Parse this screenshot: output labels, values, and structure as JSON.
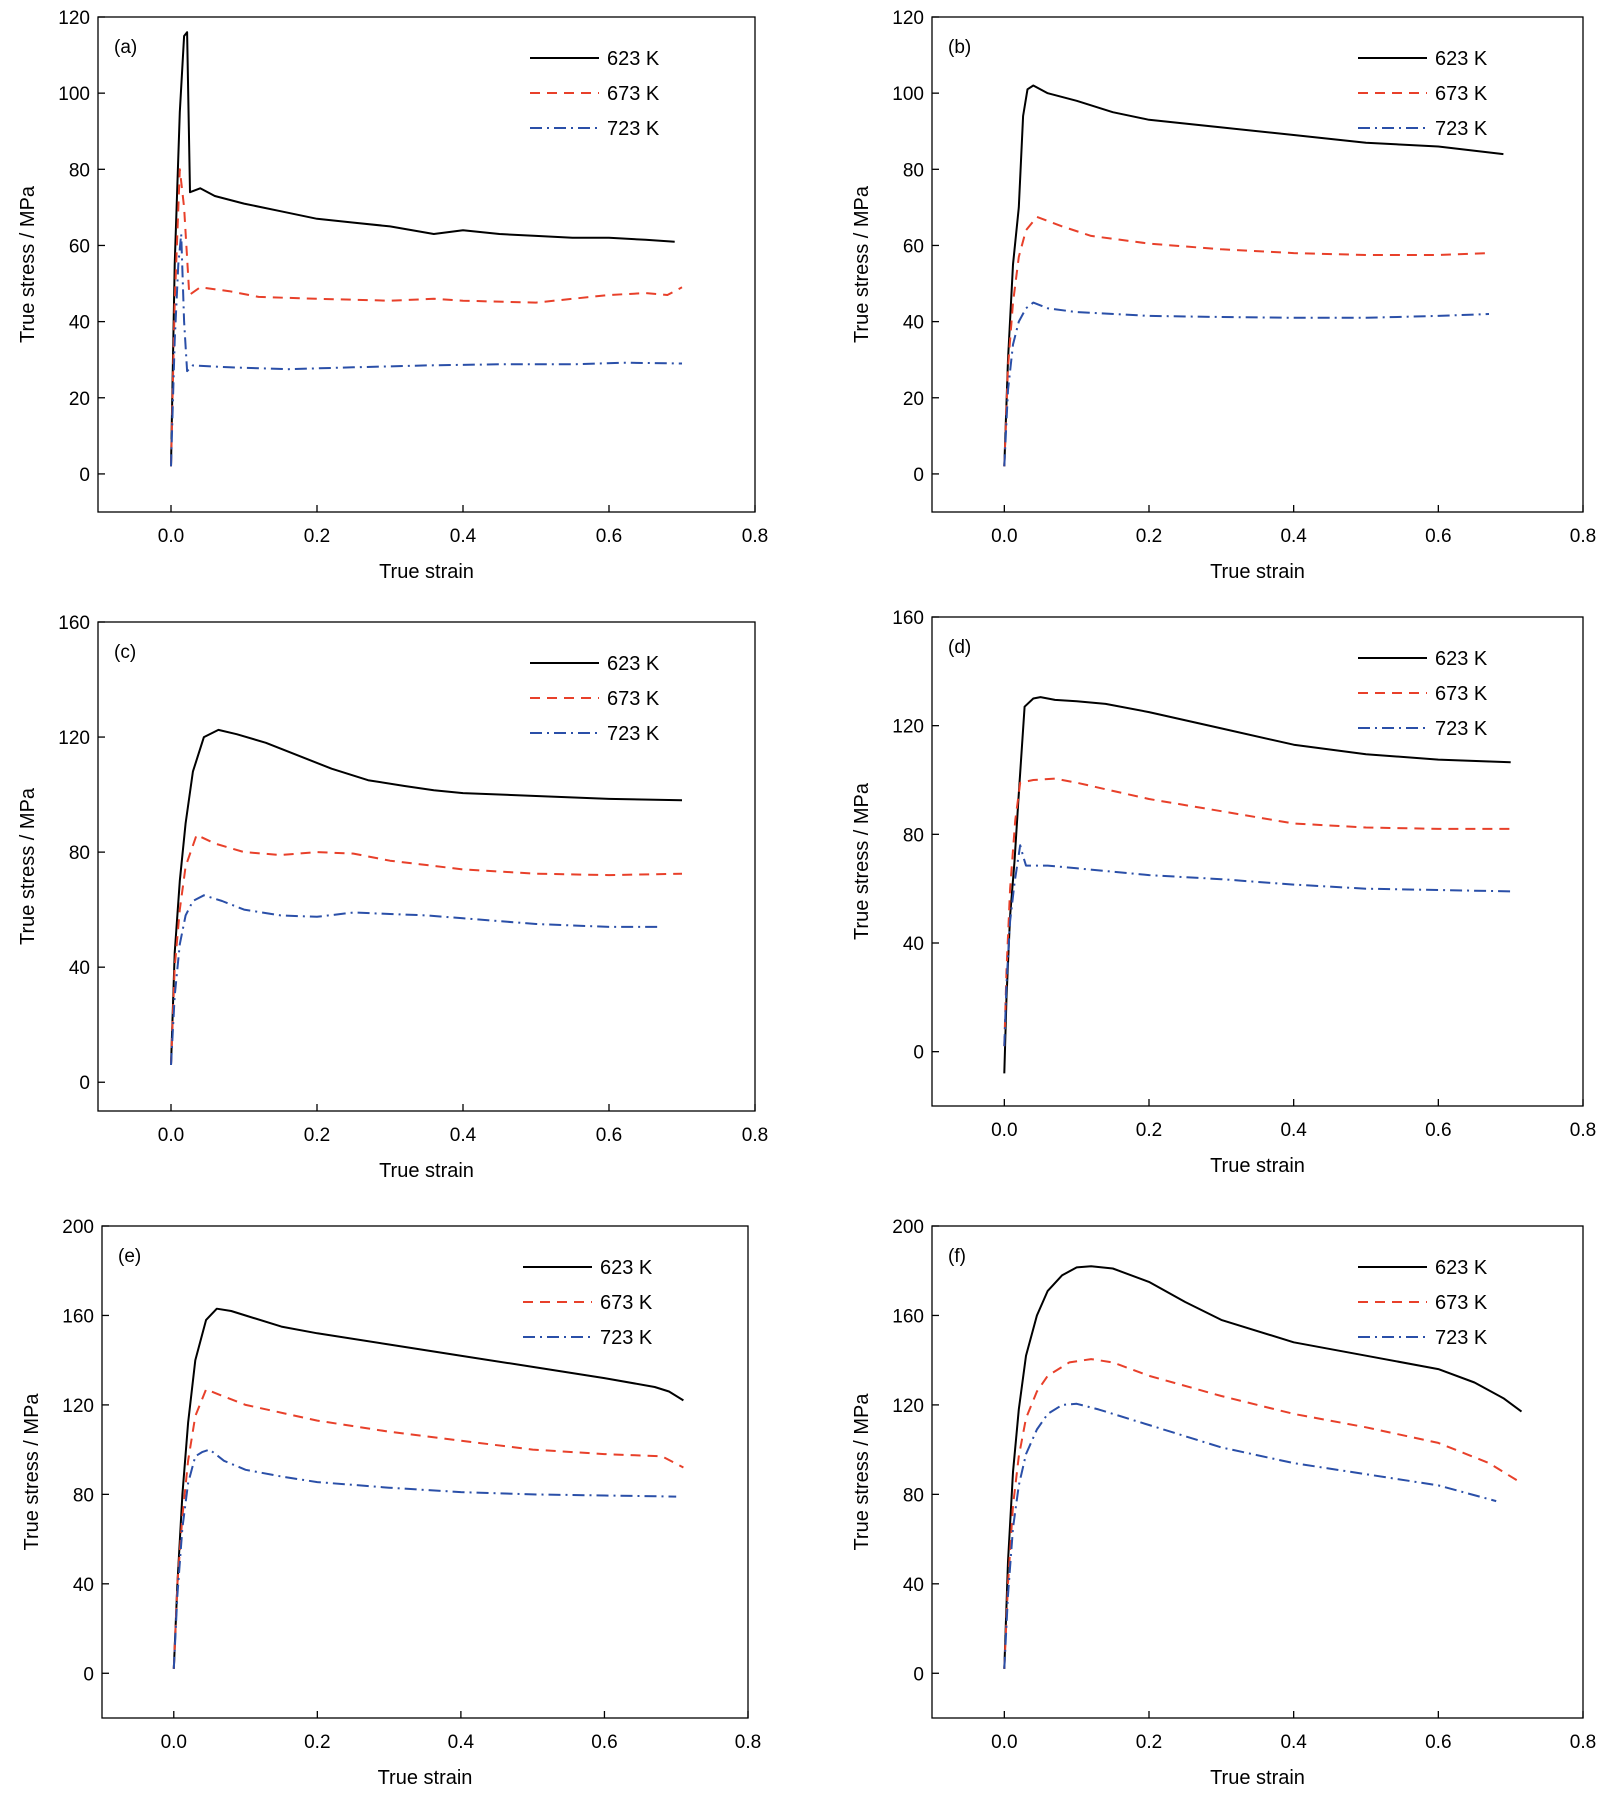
{
  "colors": {
    "623K": "#000000",
    "673K": "#e8402a",
    "723K": "#2a4fa8"
  },
  "styles": {
    "623K": "solid",
    "673K": "dashed",
    "723K": "dashdot"
  },
  "chart_data": [
    {
      "type": "line",
      "panel": "(a)",
      "xlabel": "True strain",
      "ylabel": "True stress / MPa",
      "xlim": [
        -0.1,
        0.8
      ],
      "ylim": [
        -10,
        120
      ],
      "xticks": [
        0.0,
        0.2,
        0.4,
        0.6,
        0.8
      ],
      "xtick_labels": [
        "0.0",
        "0.2",
        "0.4",
        "0.6",
        "0.8"
      ],
      "yticks": [
        0,
        20,
        40,
        60,
        80,
        100,
        120
      ],
      "ytick_labels": [
        "0",
        "20",
        "40",
        "60",
        "80",
        "100",
        "120"
      ],
      "legend": "top-right",
      "grid": false,
      "series": [
        {
          "name": "623 K",
          "key": "623K",
          "x": [
            0,
            0.005,
            0.012,
            0.018,
            0.022,
            0.026,
            0.04,
            0.06,
            0.1,
            0.15,
            0.2,
            0.25,
            0.3,
            0.36,
            0.4,
            0.45,
            0.5,
            0.55,
            0.6,
            0.65,
            0.69
          ],
          "y": [
            2,
            55,
            95,
            115,
            116,
            74,
            75,
            73,
            71,
            69,
            67,
            66,
            65,
            63,
            64,
            63,
            62.5,
            62,
            62,
            61.5,
            61
          ]
        },
        {
          "name": "673 K",
          "key": "673K",
          "x": [
            0,
            0.005,
            0.012,
            0.018,
            0.025,
            0.04,
            0.08,
            0.12,
            0.2,
            0.3,
            0.36,
            0.4,
            0.5,
            0.55,
            0.6,
            0.65,
            0.68,
            0.7
          ],
          "y": [
            2,
            45,
            80,
            70,
            47,
            49,
            48,
            46.5,
            46,
            45.5,
            46,
            45.5,
            45,
            46,
            47,
            47.5,
            47,
            49
          ]
        },
        {
          "name": "723 K",
          "key": "723K",
          "x": [
            0,
            0.005,
            0.01,
            0.014,
            0.018,
            0.022,
            0.03,
            0.08,
            0.16,
            0.25,
            0.35,
            0.45,
            0.55,
            0.62,
            0.7
          ],
          "y": [
            2,
            35,
            55,
            63,
            40,
            27,
            28.5,
            28,
            27.5,
            28,
            28.5,
            28.8,
            28.8,
            29.2,
            29
          ]
        }
      ]
    },
    {
      "type": "line",
      "panel": "(b)",
      "xlabel": "True strain",
      "ylabel": "True stress / MPa",
      "xlim": [
        -0.1,
        0.8
      ],
      "ylim": [
        -10,
        120
      ],
      "xticks": [
        0.0,
        0.2,
        0.4,
        0.6,
        0.8
      ],
      "xtick_labels": [
        "0.0",
        "0.2",
        "0.4",
        "0.6",
        "0.8"
      ],
      "yticks": [
        0,
        20,
        40,
        60,
        80,
        100,
        120
      ],
      "ytick_labels": [
        "0",
        "20",
        "40",
        "60",
        "80",
        "100",
        "120"
      ],
      "legend": "top-right",
      "grid": false,
      "series": [
        {
          "name": "623 K",
          "key": "623K",
          "x": [
            0,
            0.005,
            0.012,
            0.02,
            0.026,
            0.032,
            0.04,
            0.06,
            0.1,
            0.15,
            0.2,
            0.3,
            0.4,
            0.5,
            0.6,
            0.69
          ],
          "y": [
            2,
            30,
            55,
            70,
            94,
            101,
            102,
            100,
            98,
            95,
            93,
            91,
            89,
            87,
            86,
            84
          ]
        },
        {
          "name": "673 K",
          "key": "673K",
          "x": [
            0,
            0.005,
            0.012,
            0.02,
            0.03,
            0.045,
            0.08,
            0.12,
            0.2,
            0.3,
            0.4,
            0.5,
            0.6,
            0.67
          ],
          "y": [
            2,
            28,
            45,
            57,
            64,
            67.5,
            65,
            62.5,
            60.5,
            59,
            58,
            57.5,
            57.5,
            58
          ]
        },
        {
          "name": "723 K",
          "key": "723K",
          "x": [
            0,
            0.005,
            0.012,
            0.02,
            0.03,
            0.04,
            0.06,
            0.1,
            0.2,
            0.3,
            0.4,
            0.5,
            0.6,
            0.67
          ],
          "y": [
            2,
            22,
            34,
            40,
            43.5,
            45,
            43.5,
            42.5,
            41.5,
            41.2,
            41,
            41,
            41.5,
            42
          ]
        }
      ]
    },
    {
      "type": "line",
      "panel": "(c)",
      "xlabel": "True strain",
      "ylabel": "True stress / MPa",
      "xlim": [
        -0.1,
        0.8
      ],
      "ylim": [
        -10,
        160
      ],
      "xticks": [
        0.0,
        0.2,
        0.4,
        0.6,
        0.8
      ],
      "xtick_labels": [
        "0.0",
        "0.2",
        "0.4",
        "0.6",
        "0.8"
      ],
      "yticks": [
        0,
        40,
        80,
        120,
        160
      ],
      "ytick_labels": [
        "0",
        "40",
        "80",
        "120",
        "160"
      ],
      "legend": "top-right",
      "grid": false,
      "series": [
        {
          "name": "623 K",
          "key": "623K",
          "x": [
            0,
            0.005,
            0.012,
            0.02,
            0.03,
            0.045,
            0.065,
            0.09,
            0.13,
            0.18,
            0.22,
            0.27,
            0.32,
            0.36,
            0.4,
            0.5,
            0.6,
            0.7
          ],
          "y": [
            6,
            45,
            70,
            90,
            108,
            120,
            122.5,
            121,
            118,
            113,
            109,
            105,
            103,
            101.5,
            100.5,
            99.5,
            98.5,
            98
          ]
        },
        {
          "name": "673 K",
          "key": "673K",
          "x": [
            0,
            0.005,
            0.012,
            0.02,
            0.035,
            0.06,
            0.1,
            0.15,
            0.2,
            0.25,
            0.3,
            0.4,
            0.5,
            0.6,
            0.7
          ],
          "y": [
            6,
            40,
            60,
            75,
            86,
            83,
            80,
            79,
            80,
            79.5,
            77,
            74,
            72.5,
            72,
            72.5
          ]
        },
        {
          "name": "723 K",
          "key": "723K",
          "x": [
            0,
            0.005,
            0.012,
            0.02,
            0.03,
            0.045,
            0.07,
            0.1,
            0.15,
            0.2,
            0.25,
            0.3,
            0.35,
            0.4,
            0.5,
            0.6,
            0.67
          ],
          "y": [
            6,
            30,
            48,
            58,
            63,
            65,
            63,
            60,
            58,
            57.5,
            59,
            58.5,
            58,
            57,
            55,
            54,
            54
          ]
        }
      ]
    },
    {
      "type": "line",
      "panel": "(d)",
      "xlabel": "True strain",
      "ylabel": "True stress / MPa",
      "xlim": [
        -0.1,
        0.8
      ],
      "ylim": [
        -20,
        160
      ],
      "xticks": [
        0.0,
        0.2,
        0.4,
        0.6,
        0.8
      ],
      "xtick_labels": [
        "0.0",
        "0.2",
        "0.4",
        "0.6",
        "0.8"
      ],
      "yticks": [
        0,
        40,
        80,
        120,
        160
      ],
      "ytick_labels": [
        "0",
        "40",
        "80",
        "120",
        "160"
      ],
      "legend": "top-right",
      "grid": false,
      "series": [
        {
          "name": "623 K",
          "key": "623K",
          "x": [
            0,
            0.003,
            0.008,
            0.014,
            0.02,
            0.028,
            0.04,
            0.05,
            0.07,
            0.1,
            0.14,
            0.2,
            0.3,
            0.4,
            0.5,
            0.6,
            0.7
          ],
          "y": [
            -8,
            20,
            50,
            70,
            95,
            127,
            130,
            130.5,
            129.5,
            129,
            128,
            125,
            119,
            113,
            109.5,
            107.5,
            106.5
          ]
        },
        {
          "name": "673 K",
          "key": "673K",
          "x": [
            0,
            0.003,
            0.008,
            0.015,
            0.022,
            0.04,
            0.07,
            0.1,
            0.15,
            0.2,
            0.3,
            0.4,
            0.5,
            0.6,
            0.7
          ],
          "y": [
            2,
            30,
            60,
            85,
            99,
            100,
            100.5,
            99,
            96,
            93,
            88.5,
            84,
            82.5,
            82,
            82
          ]
        },
        {
          "name": "723 K",
          "key": "723K",
          "x": [
            0,
            0.003,
            0.008,
            0.014,
            0.022,
            0.026,
            0.03,
            0.06,
            0.1,
            0.2,
            0.3,
            0.4,
            0.5,
            0.6,
            0.7
          ],
          "y": [
            2,
            25,
            48,
            62,
            76,
            72,
            68.5,
            68.5,
            67.5,
            65,
            63.5,
            61.5,
            60,
            59.5,
            59
          ]
        }
      ]
    },
    {
      "type": "line",
      "panel": "(e)",
      "xlabel": "True strain",
      "ylabel": "True stress / MPa",
      "xlim": [
        -0.1,
        0.8
      ],
      "ylim": [
        -20,
        200
      ],
      "xticks": [
        0.0,
        0.2,
        0.4,
        0.6,
        0.8
      ],
      "xtick_labels": [
        "0.0",
        "0.2",
        "0.4",
        "0.6",
        "0.8"
      ],
      "yticks": [
        0,
        40,
        80,
        120,
        160,
        200
      ],
      "ytick_labels": [
        "0",
        "40",
        "80",
        "120",
        "160",
        "200"
      ],
      "legend": "top-right",
      "grid": false,
      "series": [
        {
          "name": "623 K",
          "key": "623K",
          "x": [
            0,
            0.005,
            0.012,
            0.02,
            0.03,
            0.045,
            0.06,
            0.08,
            0.1,
            0.15,
            0.2,
            0.3,
            0.4,
            0.5,
            0.6,
            0.67,
            0.69,
            0.71
          ],
          "y": [
            2,
            40,
            80,
            112,
            140,
            158,
            163,
            162,
            160,
            155,
            152,
            147,
            142,
            137,
            132,
            128,
            126,
            122
          ]
        },
        {
          "name": "673 K",
          "key": "673K",
          "x": [
            0,
            0.005,
            0.012,
            0.02,
            0.03,
            0.045,
            0.06,
            0.1,
            0.2,
            0.3,
            0.4,
            0.5,
            0.6,
            0.68,
            0.71
          ],
          "y": [
            2,
            40,
            70,
            95,
            115,
            127,
            125,
            120,
            113,
            108,
            104,
            100,
            98,
            97,
            92
          ]
        },
        {
          "name": "723 K",
          "key": "723K",
          "x": [
            0,
            0.005,
            0.012,
            0.02,
            0.03,
            0.04,
            0.05,
            0.07,
            0.1,
            0.15,
            0.2,
            0.3,
            0.4,
            0.5,
            0.6,
            0.7
          ],
          "y": [
            2,
            35,
            65,
            85,
            97,
            99,
            100,
            95,
            91,
            88,
            85.5,
            83,
            81,
            80,
            79.5,
            79
          ]
        }
      ]
    },
    {
      "type": "line",
      "panel": "(f)",
      "xlabel": "True strain",
      "ylabel": "True stress / MPa",
      "xlim": [
        -0.1,
        0.8
      ],
      "ylim": [
        -20,
        200
      ],
      "xticks": [
        0.0,
        0.2,
        0.4,
        0.6,
        0.8
      ],
      "xtick_labels": [
        "0.0",
        "0.2",
        "0.4",
        "0.6",
        "0.8"
      ],
      "yticks": [
        0,
        40,
        80,
        120,
        160,
        200
      ],
      "ytick_labels": [
        "0",
        "40",
        "80",
        "120",
        "160",
        "200"
      ],
      "legend": "top-right",
      "grid": false,
      "series": [
        {
          "name": "623 K",
          "key": "623K",
          "x": [
            0,
            0.005,
            0.012,
            0.02,
            0.03,
            0.045,
            0.06,
            0.08,
            0.1,
            0.12,
            0.15,
            0.2,
            0.25,
            0.3,
            0.4,
            0.5,
            0.6,
            0.65,
            0.69,
            0.715
          ],
          "y": [
            2,
            50,
            90,
            118,
            142,
            160,
            171,
            178,
            181.5,
            182,
            181,
            175,
            166,
            158,
            148,
            142,
            136,
            130,
            123,
            117
          ]
        },
        {
          "name": "673 K",
          "key": "673K",
          "x": [
            0,
            0.005,
            0.012,
            0.02,
            0.03,
            0.045,
            0.06,
            0.09,
            0.12,
            0.15,
            0.2,
            0.3,
            0.4,
            0.5,
            0.6,
            0.67,
            0.71
          ],
          "y": [
            2,
            40,
            75,
            97,
            114,
            126,
            133,
            139,
            140.5,
            139,
            133,
            124,
            116,
            110,
            103,
            94,
            86
          ]
        },
        {
          "name": "723 K",
          "key": "723K",
          "x": [
            0,
            0.005,
            0.012,
            0.02,
            0.03,
            0.045,
            0.06,
            0.08,
            0.1,
            0.13,
            0.2,
            0.3,
            0.4,
            0.5,
            0.6,
            0.68
          ],
          "y": [
            2,
            35,
            65,
            84,
            98,
            109,
            116,
            120,
            120.5,
            118,
            111,
            101,
            94,
            89,
            84,
            77
          ]
        }
      ]
    }
  ]
}
